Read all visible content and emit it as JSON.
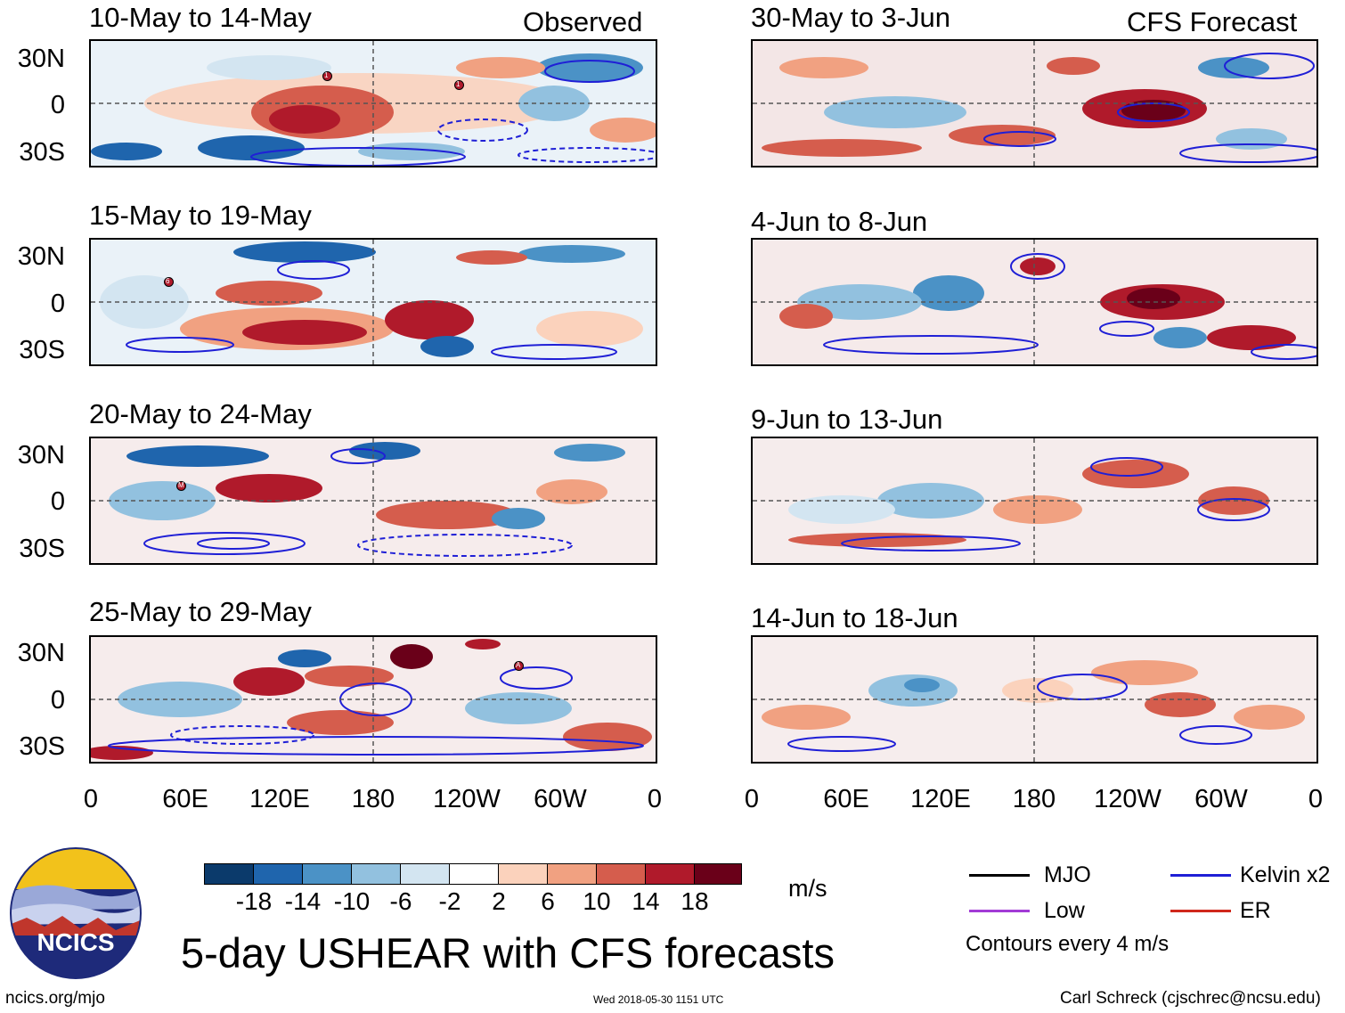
{
  "headers": {
    "observed": "Observed",
    "forecast": "CFS Forecast"
  },
  "observed_panels": [
    {
      "title": "10-May to 14-May"
    },
    {
      "title": "15-May to 19-May"
    },
    {
      "title": "20-May to 24-May"
    },
    {
      "title": "25-May to 29-May"
    }
  ],
  "forecast_panels": [
    {
      "title": "30-May to 3-Jun"
    },
    {
      "title": "4-Jun to 8-Jun"
    },
    {
      "title": "9-Jun to 13-Jun"
    },
    {
      "title": "14-Jun to 18-Jun"
    }
  ],
  "storm_markers": [
    "1",
    "1",
    "6",
    "M",
    "A"
  ],
  "lat_labels": [
    "30N",
    "0",
    "30S"
  ],
  "lon_labels": [
    "0",
    "60E",
    "120E",
    "180",
    "120W",
    "60W",
    "0"
  ],
  "colorbar": {
    "ticks": [
      "-18",
      "-14",
      "-10",
      "-6",
      "-2",
      "2",
      "6",
      "10",
      "14",
      "18"
    ],
    "colors": [
      "#0b3a6b",
      "#1f65ad",
      "#4b92c6",
      "#92c1df",
      "#d3e5f1",
      "#ffffff",
      "#fbd2bc",
      "#f1a181",
      "#d55d4d",
      "#b01a2b",
      "#6a0019"
    ],
    "unit": "m/s"
  },
  "legend": {
    "items": [
      {
        "label": "MJO",
        "color": "#000000"
      },
      {
        "label": "Kelvin x2",
        "color": "#1f1fd6"
      },
      {
        "label": "Low",
        "color": "#a23bd6"
      },
      {
        "label": "ER",
        "color": "#d0281c"
      }
    ],
    "note": "Contours every 4 m/s"
  },
  "main_title": "5-day USHEAR with CFS forecasts",
  "logo_text": "NCICS",
  "footer": {
    "url": "ncics.org/mjo",
    "timestamp": "Wed 2018-05-30 1151 UTC",
    "author": "Carl Schreck (cjschrec@ncsu.edu)"
  }
}
